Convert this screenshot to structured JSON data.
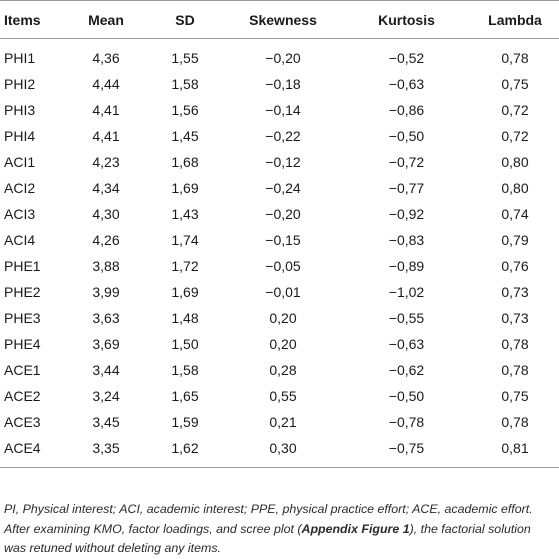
{
  "table": {
    "headers": [
      "Items",
      "Mean",
      "SD",
      "Skewness",
      "Kurtosis",
      "Lambda"
    ],
    "rows": [
      [
        "PHI1",
        "4,36",
        "1,55",
        "−0,20",
        "−0,52",
        "0,78"
      ],
      [
        "PHI2",
        "4,44",
        "1,58",
        "−0,18",
        "−0,63",
        "0,75"
      ],
      [
        "PHI3",
        "4,41",
        "1,56",
        "−0,14",
        "−0,86",
        "0,72"
      ],
      [
        "PHI4",
        "4,41",
        "1,45",
        "−0,22",
        "−0,50",
        "0,72"
      ],
      [
        "ACI1",
        "4,23",
        "1,68",
        "−0,12",
        "−0,72",
        "0,80"
      ],
      [
        "ACI2",
        "4,34",
        "1,69",
        "−0,24",
        "−0,77",
        "0,80"
      ],
      [
        "ACI3",
        "4,30",
        "1,43",
        "−0,20",
        "−0,92",
        "0,74"
      ],
      [
        "ACI4",
        "4,26",
        "1,74",
        "−0,15",
        "−0,83",
        "0,79"
      ],
      [
        "PHE1",
        "3,88",
        "1,72",
        "−0,05",
        "−0,89",
        "0,76"
      ],
      [
        "PHE2",
        "3,99",
        "1,69",
        "−0,01",
        "−1,02",
        "0,73"
      ],
      [
        "PHE3",
        "3,63",
        "1,48",
        "0,20",
        "−0,55",
        "0,73"
      ],
      [
        "PHE4",
        "3,69",
        "1,50",
        "0,20",
        "−0,63",
        "0,78"
      ],
      [
        "ACE1",
        "3,44",
        "1,58",
        "0,28",
        "−0,62",
        "0,78"
      ],
      [
        "ACE2",
        "3,24",
        "1,65",
        "0,55",
        "−0,50",
        "0,75"
      ],
      [
        "ACE3",
        "3,45",
        "1,59",
        "0,21",
        "−0,78",
        "0,78"
      ],
      [
        "ACE4",
        "3,35",
        "1,62",
        "0,30",
        "−0,75",
        "0,81"
      ]
    ]
  },
  "footnote": {
    "before": "PI, Physical interest; ACI, academic interest; PPE, physical practice effort; ACE, academic effort. After examining KMO, factor loadings, and scree plot (",
    "link": "Appendix Figure 1",
    "after": "), the factorial solution was retuned without deleting any items."
  }
}
